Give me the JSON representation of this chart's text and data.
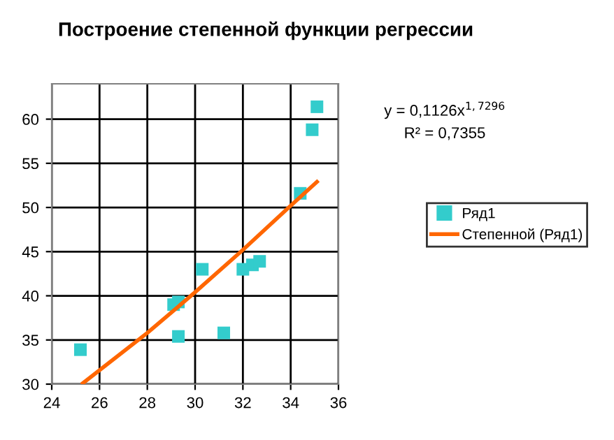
{
  "chart_data": {
    "type": "scatter",
    "title": "Построение степенной функции регрессии",
    "xlim": [
      24,
      36
    ],
    "xticks": [
      24,
      26,
      28,
      30,
      32,
      34,
      36
    ],
    "ylim": [
      30,
      64
    ],
    "yticks": [
      30,
      35,
      40,
      45,
      50,
      55,
      60
    ],
    "grid": true,
    "legend": "right",
    "series": [
      {
        "name": "Ряд1",
        "color": "#33cccc",
        "marker": "square",
        "x": [
          25.2,
          29.1,
          29.3,
          29.3,
          30.3,
          31.2,
          32.0,
          32.4,
          32.7,
          34.4,
          34.9,
          35.1
        ],
        "values": [
          33.9,
          39.0,
          39.3,
          35.4,
          43.0,
          35.8,
          43.0,
          43.5,
          43.9,
          51.6,
          58.8,
          61.4
        ]
      },
      {
        "name": "Степенной (Ряд1)",
        "type": "line",
        "color": "#ff6600",
        "marker": "none",
        "line_style": "solid",
        "x": [
          25.3,
          28,
          30,
          32,
          34,
          35.1
        ],
        "values": [
          30.1,
          35.8,
          40.4,
          45.2,
          50.2,
          52.9
        ]
      }
    ],
    "annotations": [
      "y = 0,1126x$^{1,7296}$",
      "R² = 0,7355"
    ]
  }
}
